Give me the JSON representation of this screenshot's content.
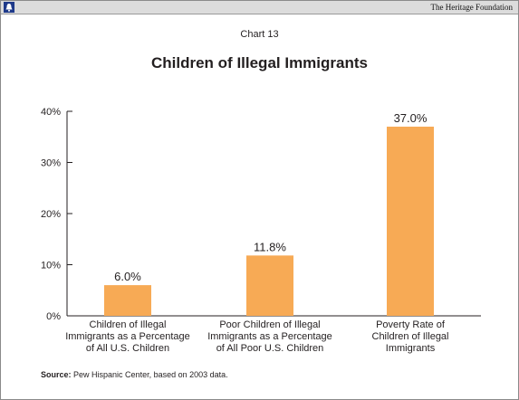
{
  "header": {
    "brand": "The Heritage Foundation",
    "logo_icon": "liberty-bell-icon"
  },
  "chart_number": "Chart 13",
  "chart_data": {
    "type": "bar",
    "title": "Children of Illegal Immigrants",
    "categories": [
      [
        "Children of Illegal",
        "Immigrants as a Percentage",
        "of All U.S. Children"
      ],
      [
        "Poor Children of Illegal",
        "Immigrants as a Percentage",
        "of All Poor U.S. Children"
      ],
      [
        "Poverty Rate of",
        "Children of Illegal",
        "Immigrants"
      ]
    ],
    "values": [
      6.0,
      11.8,
      37.0
    ],
    "data_labels": [
      "6.0%",
      "11.8%",
      "37.0%"
    ],
    "yticks": [
      "0%",
      "10%",
      "20%",
      "30%",
      "40%"
    ],
    "ylim": [
      0,
      40
    ],
    "xlabel": "",
    "ylabel": "",
    "grid": false,
    "bar_color": "#f7aa55"
  },
  "source": {
    "label": "Source:",
    "text": "Pew Hispanic Center, based on 2003 data."
  }
}
